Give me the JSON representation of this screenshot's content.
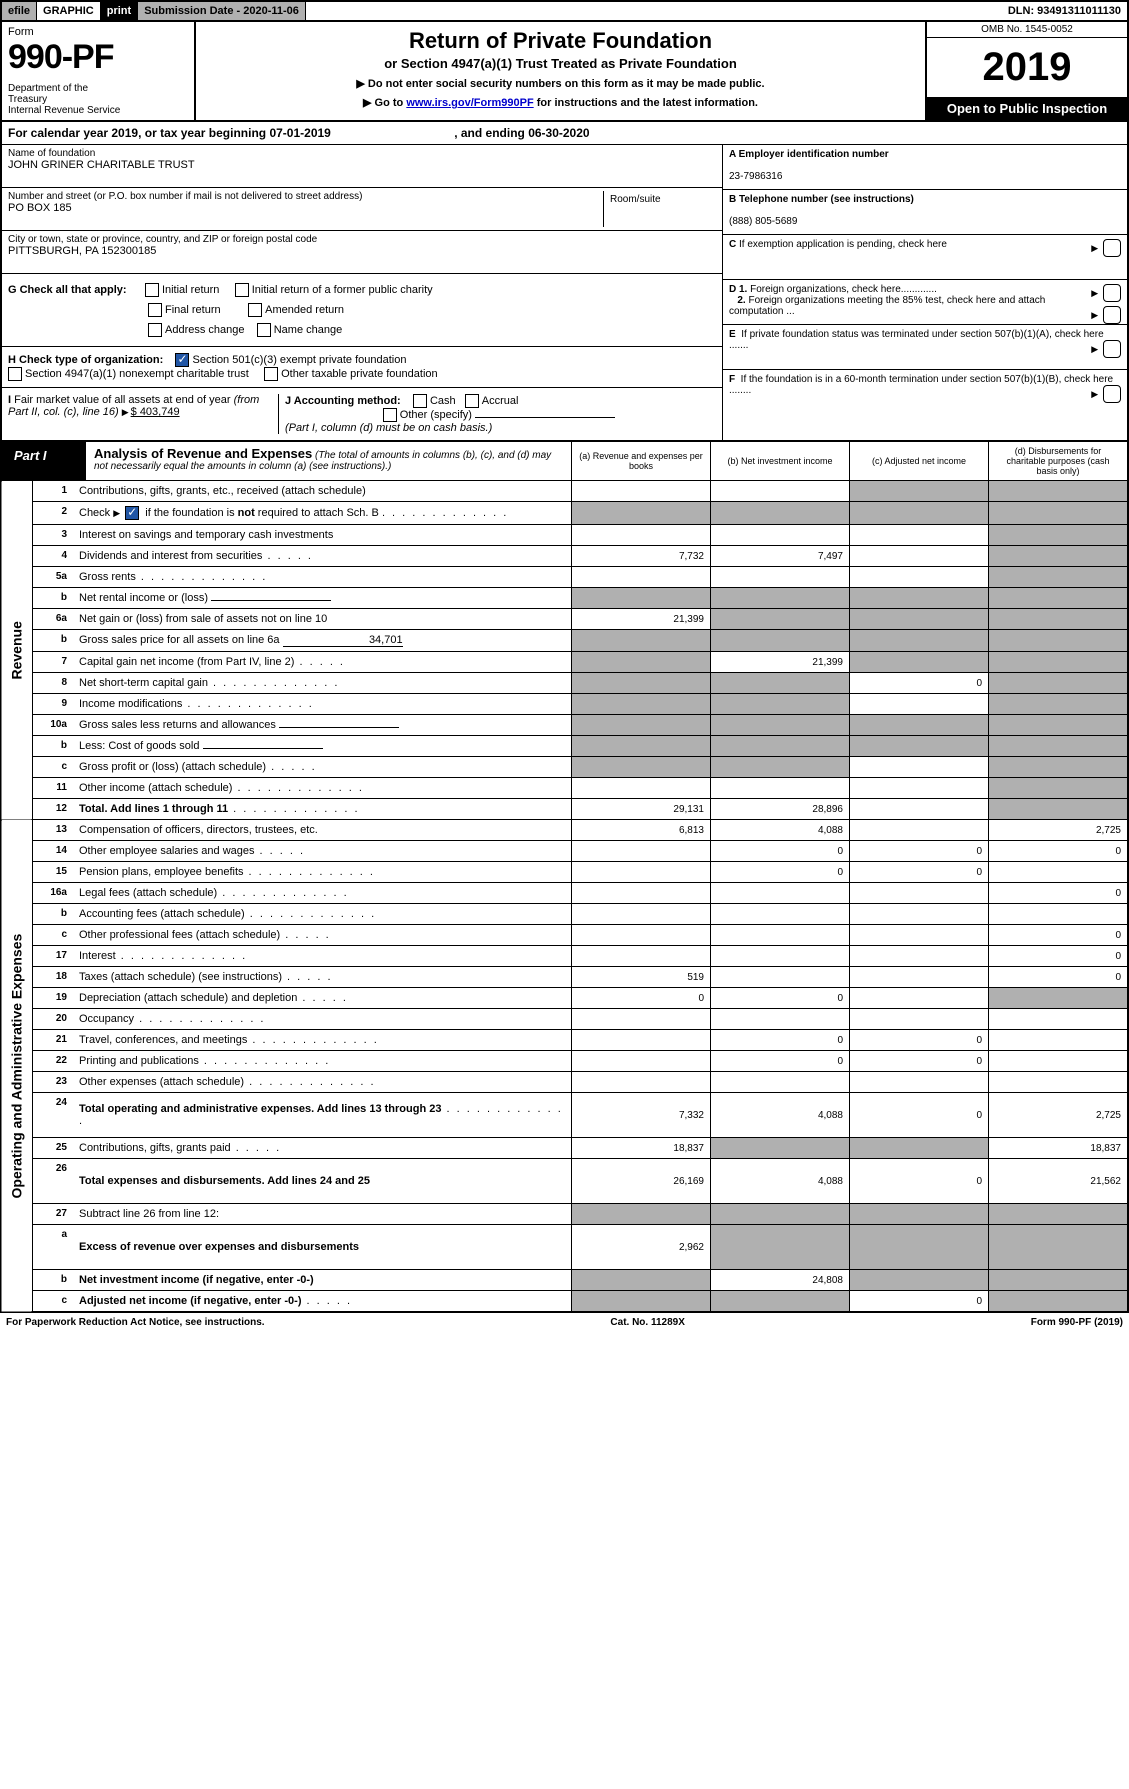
{
  "topbar": {
    "efile": "efile GRAPHIC",
    "print": "print",
    "submission": "Submission Date - 2020-11-06",
    "dln": "DLN: 93491311011130"
  },
  "header": {
    "form_label": "Form",
    "form_num": "990-PF",
    "dept": "Department of the Treasury\nInternal Revenue Service",
    "title": "Return of Private Foundation",
    "subtitle": "or Section 4947(a)(1) Trust Treated as Private Foundation",
    "instr1": "▶ Do not enter social security numbers on this form as it may be made public.",
    "instr2_pre": "▶ Go to ",
    "instr2_link": "www.irs.gov/Form990PF",
    "instr2_post": " for instructions and the latest information.",
    "omb": "OMB No. 1545-0052",
    "year": "2019",
    "open": "Open to Public Inspection"
  },
  "calyear": {
    "text_pre": "For calendar year 2019, or tax year beginning ",
    "begin": "07-01-2019",
    "mid": " , and ending ",
    "end": "06-30-2020"
  },
  "info": {
    "name_label": "Name of foundation",
    "name": "JOHN GRINER CHARITABLE TRUST",
    "addr_label": "Number and street (or P.O. box number if mail is not delivered to street address)",
    "addr": "PO BOX 185",
    "room_label": "Room/suite",
    "city_label": "City or town, state or province, country, and ZIP or foreign postal code",
    "city": "PITTSBURGH, PA  152300185",
    "g_label": "G Check all that apply:",
    "g_initial": "Initial return",
    "g_initial_former": "Initial return of a former public charity",
    "g_final": "Final return",
    "g_amended": "Amended return",
    "g_addr_change": "Address change",
    "g_name_change": "Name change",
    "h_label": "H Check type of organization:",
    "h_501c3": "Section 501(c)(3) exempt private foundation",
    "h_4947": "Section 4947(a)(1) nonexempt charitable trust",
    "h_other": "Other taxable private foundation",
    "i_label": "I Fair market value of all assets at end of year (from Part II, col. (c), line 16)",
    "i_value": "$  403,749",
    "j_label": "J Accounting method:",
    "j_cash": "Cash",
    "j_accrual": "Accrual",
    "j_other": "Other (specify)",
    "j_note": "(Part I, column (d) must be on cash basis.)",
    "a_label": "A Employer identification number",
    "a_value": "23-7986316",
    "b_label": "B Telephone number (see instructions)",
    "b_value": "(888) 805-5689",
    "c_label": "C If exemption application is pending, check here",
    "d1_label": "D 1. Foreign organizations, check here",
    "d2_label": "2. Foreign organizations meeting the 85% test, check here and attach computation ...",
    "e_label": "E  If private foundation status was terminated under section 507(b)(1)(A), check here .......",
    "f_label": "F  If the foundation is in a 60-month termination under section 507(b)(1)(B), check here ........"
  },
  "part1": {
    "label": "Part I",
    "title": "Analysis of Revenue and Expenses",
    "title_note": "(The total of amounts in columns (b), (c), and (d) may not necessarily equal the amounts in column (a) (see instructions).)",
    "col_a": "(a)   Revenue and expenses per books",
    "col_b": "(b)   Net investment income",
    "col_c": "(c)   Adjusted net income",
    "col_d": "(d)   Disbursements for charitable purposes (cash basis only)"
  },
  "sections": {
    "revenue": "Revenue",
    "expenses": "Operating and Administrative Expenses"
  },
  "rows": [
    {
      "n": "1",
      "desc": "Contributions, gifts, grants, etc., received (attach schedule)",
      "a": "",
      "b": "",
      "c": "shaded",
      "d": "shaded"
    },
    {
      "n": "2",
      "desc": "Check ▶ ☑ if the foundation is not required to attach Sch. B",
      "nodots": true,
      "a": "shaded",
      "b": "shaded",
      "c": "shaded",
      "d": "shaded"
    },
    {
      "n": "3",
      "desc": "Interest on savings and temporary cash investments",
      "a": "",
      "b": "",
      "c": "",
      "d": "shaded"
    },
    {
      "n": "4",
      "desc": "Dividends and interest from securities",
      "dots": "short",
      "a": "7,732",
      "b": "7,497",
      "c": "",
      "d": "shaded"
    },
    {
      "n": "5a",
      "desc": "Gross rents",
      "dots": "long",
      "a": "",
      "b": "",
      "c": "",
      "d": "shaded"
    },
    {
      "n": "b",
      "desc": "Net rental income or (loss)",
      "inline": true,
      "a": "shaded",
      "b": "shaded",
      "c": "shaded",
      "d": "shaded"
    },
    {
      "n": "6a",
      "desc": "Net gain or (loss) from sale of assets not on line 10",
      "a": "21,399",
      "b": "shaded",
      "c": "shaded",
      "d": "shaded"
    },
    {
      "n": "b",
      "desc": "Gross sales price for all assets on line 6a",
      "inline": true,
      "inlineval": "34,701",
      "a": "shaded",
      "b": "shaded",
      "c": "shaded",
      "d": "shaded"
    },
    {
      "n": "7",
      "desc": "Capital gain net income (from Part IV, line 2)",
      "dots": "short",
      "a": "shaded",
      "b": "21,399",
      "c": "shaded",
      "d": "shaded"
    },
    {
      "n": "8",
      "desc": "Net short-term capital gain",
      "dots": "long",
      "a": "shaded",
      "b": "shaded",
      "c": "0",
      "d": "shaded"
    },
    {
      "n": "9",
      "desc": "Income modifications",
      "dots": "long",
      "a": "shaded",
      "b": "shaded",
      "c": "",
      "d": "shaded"
    },
    {
      "n": "10a",
      "desc": "Gross sales less returns and allowances",
      "inline": true,
      "a": "shaded",
      "b": "shaded",
      "c": "shaded",
      "d": "shaded"
    },
    {
      "n": "b",
      "desc": "Less: Cost of goods sold",
      "dots": "short",
      "inline": true,
      "a": "shaded",
      "b": "shaded",
      "c": "shaded",
      "d": "shaded"
    },
    {
      "n": "c",
      "desc": "Gross profit or (loss) (attach schedule)",
      "dots": "short",
      "a": "shaded",
      "b": "shaded",
      "c": "",
      "d": "shaded"
    },
    {
      "n": "11",
      "desc": "Other income (attach schedule)",
      "dots": "long",
      "a": "",
      "b": "",
      "c": "",
      "d": "shaded"
    },
    {
      "n": "12",
      "desc": "Total. Add lines 1 through 11",
      "dots": "long",
      "bold": true,
      "a": "29,131",
      "b": "28,896",
      "c": "",
      "d": "shaded"
    },
    {
      "n": "13",
      "desc": "Compensation of officers, directors, trustees, etc.",
      "a": "6,813",
      "b": "4,088",
      "c": "",
      "d": "2,725"
    },
    {
      "n": "14",
      "desc": "Other employee salaries and wages",
      "dots": "short",
      "a": "",
      "b": "0",
      "c": "0",
      "d": "0"
    },
    {
      "n": "15",
      "desc": "Pension plans, employee benefits",
      "dots": "long",
      "a": "",
      "b": "0",
      "c": "0",
      "d": ""
    },
    {
      "n": "16a",
      "desc": "Legal fees (attach schedule)",
      "dots": "long",
      "a": "",
      "b": "",
      "c": "",
      "d": "0"
    },
    {
      "n": "b",
      "desc": "Accounting fees (attach schedule)",
      "dots": "long",
      "a": "",
      "b": "",
      "c": "",
      "d": ""
    },
    {
      "n": "c",
      "desc": "Other professional fees (attach schedule)",
      "dots": "short",
      "a": "",
      "b": "",
      "c": "",
      "d": "0"
    },
    {
      "n": "17",
      "desc": "Interest",
      "dots": "long",
      "a": "",
      "b": "",
      "c": "",
      "d": "0"
    },
    {
      "n": "18",
      "desc": "Taxes (attach schedule) (see instructions)",
      "dots": "short",
      "a": "519",
      "b": "",
      "c": "",
      "d": "0"
    },
    {
      "n": "19",
      "desc": "Depreciation (attach schedule) and depletion",
      "dots": "short",
      "a": "0",
      "b": "0",
      "c": "",
      "d": "shaded"
    },
    {
      "n": "20",
      "desc": "Occupancy",
      "dots": "long",
      "a": "",
      "b": "",
      "c": "",
      "d": ""
    },
    {
      "n": "21",
      "desc": "Travel, conferences, and meetings",
      "dots": "long",
      "a": "",
      "b": "0",
      "c": "0",
      "d": ""
    },
    {
      "n": "22",
      "desc": "Printing and publications",
      "dots": "long",
      "a": "",
      "b": "0",
      "c": "0",
      "d": ""
    },
    {
      "n": "23",
      "desc": "Other expenses (attach schedule)",
      "dots": "long",
      "a": "",
      "b": "",
      "c": "",
      "d": ""
    },
    {
      "n": "24",
      "desc": "Total operating and administrative expenses. Add lines 13 through 23",
      "dots": "long",
      "bold": true,
      "a": "7,332",
      "b": "4,088",
      "c": "0",
      "d": "2,725",
      "tall": true
    },
    {
      "n": "25",
      "desc": "Contributions, gifts, grants paid",
      "dots": "short",
      "a": "18,837",
      "b": "shaded",
      "c": "shaded",
      "d": "18,837"
    },
    {
      "n": "26",
      "desc": "Total expenses and disbursements. Add lines 24 and 25",
      "bold": true,
      "a": "26,169",
      "b": "4,088",
      "c": "0",
      "d": "21,562",
      "tall": true
    },
    {
      "n": "27",
      "desc": "Subtract line 26 from line 12:",
      "a": "shaded",
      "b": "shaded",
      "c": "shaded",
      "d": "shaded"
    },
    {
      "n": "a",
      "desc": "Excess of revenue over expenses and disbursements",
      "bold": true,
      "a": "2,962",
      "b": "shaded",
      "c": "shaded",
      "d": "shaded",
      "tall": true
    },
    {
      "n": "b",
      "desc": "Net investment income (if negative, enter -0-)",
      "bold": true,
      "a": "shaded",
      "b": "24,808",
      "c": "shaded",
      "d": "shaded"
    },
    {
      "n": "c",
      "desc": "Adjusted net income (if negative, enter -0-)",
      "dots": "short",
      "bold": true,
      "a": "shaded",
      "b": "shaded",
      "c": "0",
      "d": "shaded"
    }
  ],
  "footer": {
    "left": "For Paperwork Reduction Act Notice, see instructions.",
    "center": "Cat. No. 11289X",
    "right": "Form 990-PF (2019)"
  }
}
